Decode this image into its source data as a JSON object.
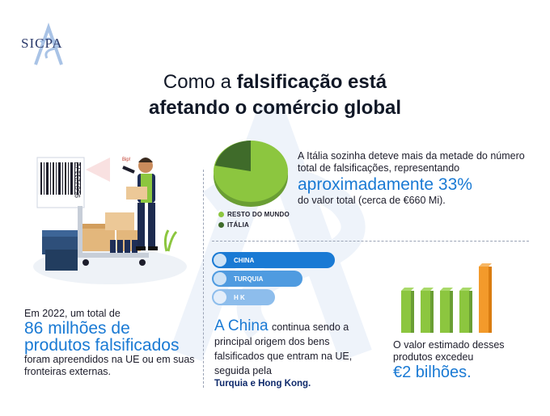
{
  "logo": {
    "text": "SICPA"
  },
  "title": {
    "line1_normal": "Como a ",
    "line1_bold": "falsificação está",
    "line2": "afetando o comércio global"
  },
  "italy": {
    "text_intro": "A Itália sozinha deteve mais da metade do número total de falsificações, representando",
    "highlight": "aproximadamente 33%",
    "text_after": "do valor total (cerca de €660 Mi).",
    "legend": [
      {
        "label": "RESTO DO MUNDO",
        "color": "#8cc63f"
      },
      {
        "label": "ITÁLIA",
        "color": "#3f6b2a"
      }
    ]
  },
  "eu": {
    "prefix": "Em 2022, um total de",
    "highlight1": "86 milhões de",
    "highlight2": "produtos falsificados",
    "suffix": "foram apreendidos na UE ou em suas fronteiras externas."
  },
  "china": {
    "highlight": "A China",
    "text": "continua sendo a principal origem dos bens falsificados que entram na UE, seguida pela",
    "bold": "Turquia e Hong Kong.",
    "bars": [
      {
        "label": "CHINA",
        "color": "#1a7ad4"
      },
      {
        "label": "TURQUIA",
        "color": "#4f9be0"
      },
      {
        "label": "H K",
        "color": "#8dbdec"
      }
    ]
  },
  "value": {
    "text": "O valor estimado desses produtos excedeu",
    "highlight": "€2 bilhões."
  },
  "illustration": {
    "barcode_number": "950721172",
    "sticker": "Bip!"
  }
}
